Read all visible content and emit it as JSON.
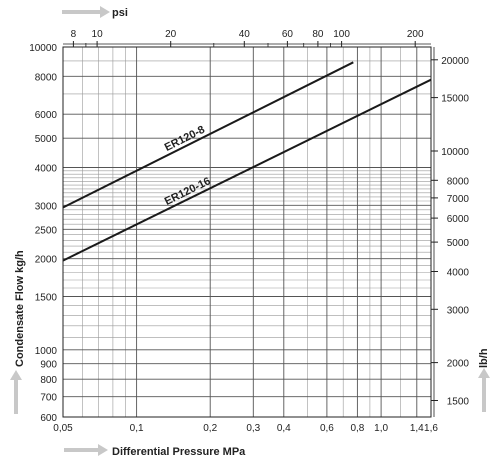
{
  "chart_data": {
    "type": "line",
    "xlabel": "Differential Pressure MPa",
    "ylabel": "Condensate Flow kg/h",
    "top_axis_label": "psi",
    "right_axis_label": "lb/h",
    "x_scale": "log",
    "y_scale": "log",
    "xlim": [
      0.05,
      1.6
    ],
    "ylim": [
      600,
      10000
    ],
    "grid": true,
    "x_ticks": [
      {
        "v": 0.05,
        "label": "0,05"
      },
      {
        "v": 0.1,
        "label": "0,1"
      },
      {
        "v": 0.2,
        "label": "0,2"
      },
      {
        "v": 0.3,
        "label": "0,3"
      },
      {
        "v": 0.4,
        "label": "0,4"
      },
      {
        "v": 0.6,
        "label": "0,6"
      },
      {
        "v": 0.8,
        "label": "0,8"
      },
      {
        "v": 1.0,
        "label": "1,0"
      },
      {
        "v": 1.4,
        "label": "1,4"
      },
      {
        "v": 1.6,
        "label": "1,6"
      }
    ],
    "y_ticks": [
      {
        "v": 600,
        "label": "600"
      },
      {
        "v": 700,
        "label": "700"
      },
      {
        "v": 800,
        "label": "800"
      },
      {
        "v": 900,
        "label": "900"
      },
      {
        "v": 1000,
        "label": "1000"
      },
      {
        "v": 1500,
        "label": "1500"
      },
      {
        "v": 2000,
        "label": "2000"
      },
      {
        "v": 2500,
        "label": "2500"
      },
      {
        "v": 3000,
        "label": "3000"
      },
      {
        "v": 4000,
        "label": "4000"
      },
      {
        "v": 5000,
        "label": "5000"
      },
      {
        "v": 6000,
        "label": "6000"
      },
      {
        "v": 8000,
        "label": "8000"
      },
      {
        "v": 10000,
        "label": "10000"
      }
    ],
    "x_grid": [
      0.05,
      0.06,
      0.07,
      0.08,
      0.09,
      0.1,
      0.2,
      0.3,
      0.4,
      0.5,
      0.6,
      0.7,
      0.8,
      0.9,
      1.0,
      1.2,
      1.4,
      1.6
    ],
    "y_grid": [
      600,
      700,
      800,
      900,
      1000,
      1100,
      1200,
      1300,
      1400,
      1500,
      1600,
      1700,
      1800,
      1900,
      2000,
      2100,
      2200,
      2300,
      2400,
      2500,
      2600,
      2700,
      2800,
      2900,
      3000,
      3100,
      3200,
      3300,
      3400,
      3500,
      3600,
      3700,
      3800,
      3900,
      4000,
      5000,
      6000,
      7000,
      8000,
      9000,
      10000
    ],
    "top_ticks": [
      {
        "v": 8,
        "label": "8"
      },
      {
        "v": 10,
        "label": "10"
      },
      {
        "v": 20,
        "label": "20"
      },
      {
        "v": 40,
        "label": "40"
      },
      {
        "v": 60,
        "label": "60"
      },
      {
        "v": 80,
        "label": "80"
      },
      {
        "v": 100,
        "label": "100"
      },
      {
        "v": 200,
        "label": "200"
      }
    ],
    "top_minor_ticks": [
      9,
      30,
      50,
      70,
      90
    ],
    "right_ticks": [
      {
        "v": 1500,
        "label": "1500"
      },
      {
        "v": 2000,
        "label": "2000"
      },
      {
        "v": 3000,
        "label": "3000"
      },
      {
        "v": 4000,
        "label": "4000"
      },
      {
        "v": 5000,
        "label": "5000"
      },
      {
        "v": 6000,
        "label": "6000"
      },
      {
        "v": 7000,
        "label": "7000"
      },
      {
        "v": 8000,
        "label": "8000"
      },
      {
        "v": 10000,
        "label": "10000"
      },
      {
        "v": 15000,
        "label": "15000"
      },
      {
        "v": 20000,
        "label": "20000"
      }
    ],
    "series": [
      {
        "name": "ER120-8",
        "x": [
          0.05,
          0.77
        ],
        "y": [
          2950,
          8900
        ],
        "label_at": 0.135
      },
      {
        "name": "ER120-16",
        "x": [
          0.05,
          1.6
        ],
        "y": [
          1970,
          7800
        ],
        "label_at": 0.135
      }
    ]
  }
}
